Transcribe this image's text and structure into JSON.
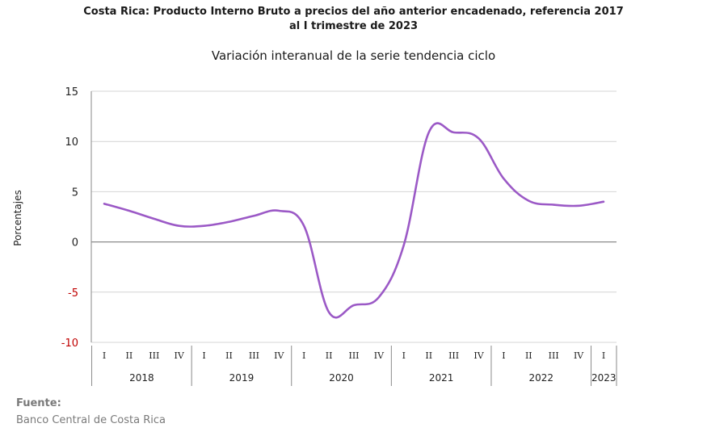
{
  "title_line1": "Costa Rica: Producto Interno Bruto a precios del año anterior encadenado, referencia 2017",
  "title_line2": "al I trimestre de 2023",
  "source_label": "Fuente:",
  "source_text": "Banco Central de Costa Rica",
  "colors": {
    "line": "#9b59c6",
    "grid": "#d4d4d4",
    "negative_tick": "#c00000"
  },
  "chart_data": {
    "type": "line",
    "title": "Variación interanual de la serie tendencia ciclo",
    "ylabel": "Porcentajes",
    "xlabel": "",
    "ylim": [
      -10,
      15
    ],
    "yticks": [
      15,
      10,
      5,
      0,
      -5,
      -10
    ],
    "grid": true,
    "quarters": [
      "I",
      "II",
      "III",
      "IV",
      "I",
      "II",
      "III",
      "IV",
      "I",
      "II",
      "III",
      "IV",
      "I",
      "II",
      "III",
      "IV",
      "I",
      "II",
      "III",
      "IV",
      "I"
    ],
    "years": [
      {
        "label": "2018",
        "count": 4
      },
      {
        "label": "2019",
        "count": 4
      },
      {
        "label": "2020",
        "count": 4
      },
      {
        "label": "2021",
        "count": 4
      },
      {
        "label": "2022",
        "count": 4
      },
      {
        "label": "2023",
        "count": 1
      }
    ],
    "series": [
      {
        "values": [
          3.8,
          3.1,
          2.3,
          1.6,
          1.6,
          2.0,
          2.6,
          3.1,
          1.6,
          -7.0,
          -6.3,
          -5.5,
          -0.3,
          10.9,
          10.9,
          10.3,
          6.3,
          4.1,
          3.7,
          3.6,
          4.0
        ]
      }
    ]
  }
}
